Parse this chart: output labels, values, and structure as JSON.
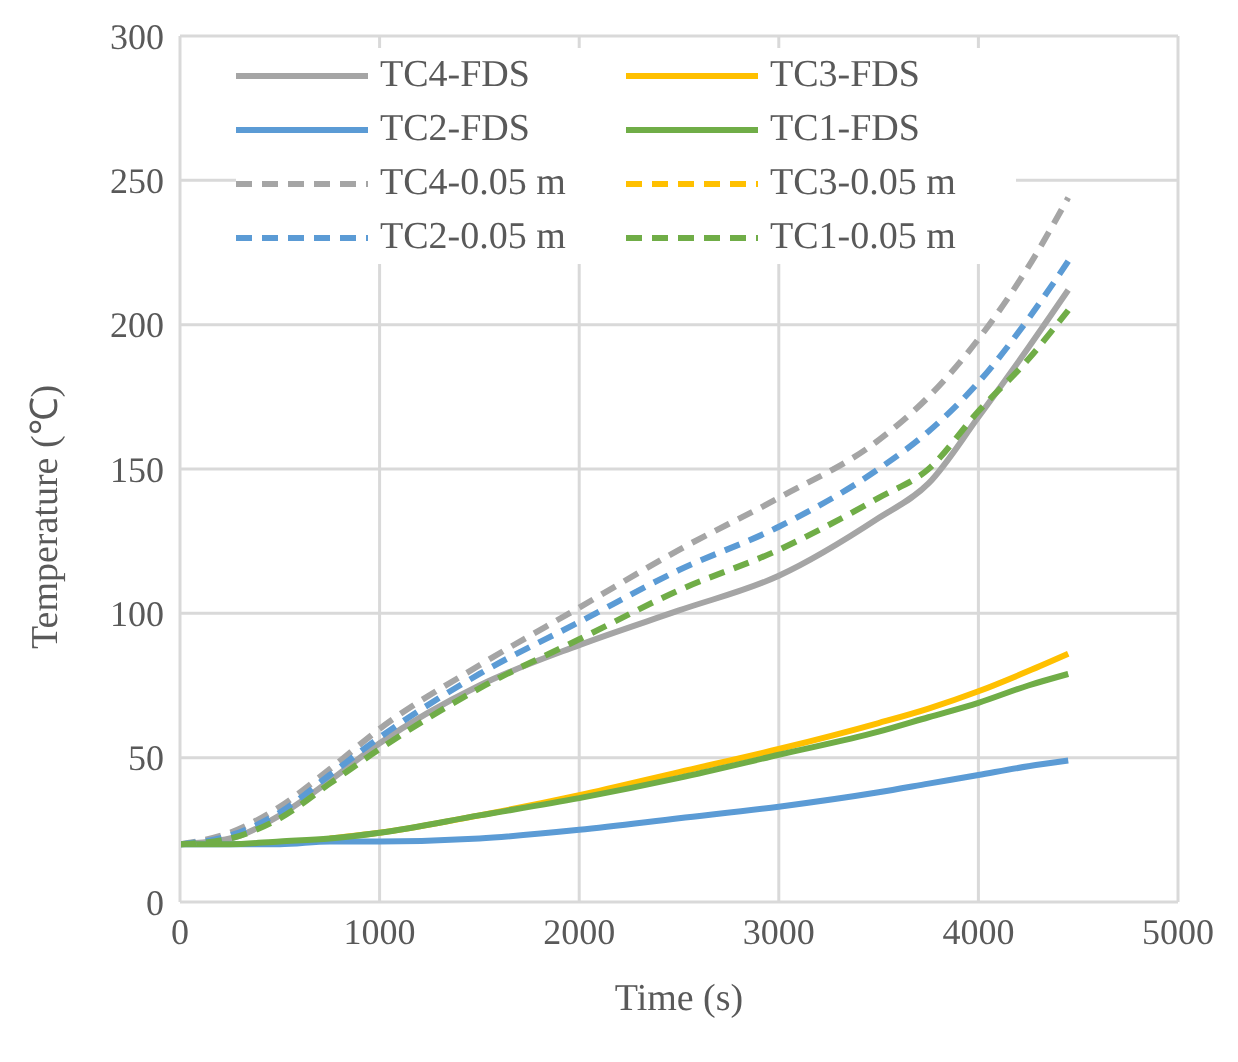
{
  "chart_data": {
    "type": "line",
    "xlabel": "Time (s)",
    "ylabel": "Temperature (℃)",
    "x": [
      0,
      250,
      500,
      750,
      1000,
      1500,
      2000,
      2500,
      3000,
      3500,
      3750,
      4000,
      4250,
      4450
    ],
    "xlim": [
      0,
      5000
    ],
    "xticks": [
      0,
      1000,
      2000,
      3000,
      4000,
      5000
    ],
    "ylim": [
      0,
      300
    ],
    "yticks": [
      0,
      50,
      100,
      150,
      200,
      250,
      300
    ],
    "grid": true,
    "legend": "top left",
    "marker": "none",
    "series": [
      {
        "name": "TC4-FDS",
        "color": "#a5a5a5",
        "line_style": "solid",
        "values": [
          20,
          22,
          30,
          42,
          55,
          75,
          89,
          101,
          113,
          133,
          145,
          168,
          192,
          212
        ]
      },
      {
        "name": "TC3-FDS",
        "color": "#ffc000",
        "line_style": "solid",
        "values": [
          null,
          null,
          null,
          22,
          24,
          30,
          37,
          45,
          53,
          62,
          67,
          73,
          80,
          86
        ]
      },
      {
        "name": "TC2-FDS",
        "color": "#5b9bd5",
        "line_style": "solid",
        "values": [
          20,
          20,
          20,
          21,
          21,
          22,
          25,
          29,
          33,
          38,
          41,
          44,
          47,
          49
        ]
      },
      {
        "name": "TC1-FDS",
        "color": "#70ad47",
        "line_style": "solid",
        "values": [
          20,
          20,
          21,
          22,
          24,
          30,
          36,
          43,
          51,
          59,
          64,
          69,
          75,
          79
        ]
      },
      {
        "name": "TC4-0.05 m",
        "color": "#a5a5a5",
        "line_style": "dashed",
        "values": [
          20,
          24,
          33,
          46,
          60,
          82,
          102,
          122,
          140,
          160,
          175,
          195,
          220,
          244
        ]
      },
      {
        "name": "TC3-0.05 m",
        "color": "#ffc000",
        "line_style": "dashed",
        "values": [
          null,
          null,
          null,
          null,
          null,
          null,
          null,
          null,
          null,
          null,
          null,
          null,
          null,
          null
        ]
      },
      {
        "name": "TC2-0.05 m",
        "color": "#5b9bd5",
        "line_style": "dashed",
        "values": [
          20,
          23,
          31,
          44,
          57,
          79,
          97,
          115,
          130,
          150,
          163,
          180,
          202,
          222
        ]
      },
      {
        "name": "TC1-0.05 m",
        "color": "#70ad47",
        "line_style": "dashed",
        "values": [
          20,
          22,
          29,
          41,
          53,
          74,
          91,
          108,
          122,
          140,
          150,
          170,
          188,
          205
        ]
      }
    ]
  }
}
